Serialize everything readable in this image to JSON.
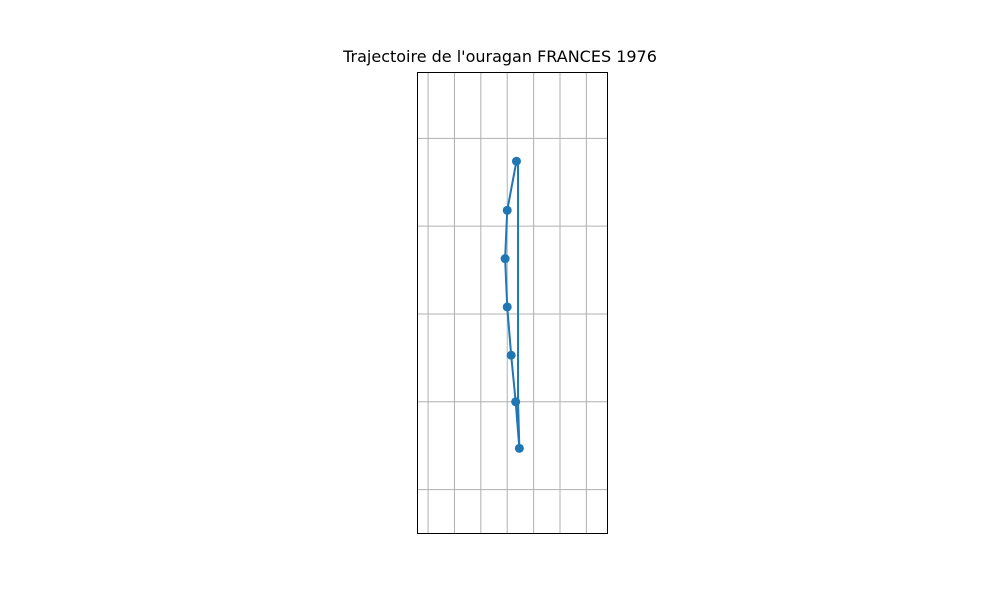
{
  "chart_data": {
    "type": "line",
    "title": "Trajectoire de l'ouragan FRANCES 1976",
    "xlabel": "",
    "ylabel": "",
    "grid": true,
    "x_gridlines": [
      0,
      1,
      2,
      3,
      4,
      5,
      6
    ],
    "y_gridlines": [
      0,
      1,
      2,
      3,
      4
    ],
    "xlim": [
      -0.4,
      6.8
    ],
    "ylim": [
      -0.5,
      4.75
    ],
    "series": [
      {
        "name": "",
        "color": "#1f77b4",
        "marker": "circle",
        "points": [
          {
            "x": 3.35,
            "y": 3.74
          },
          {
            "x": 3.0,
            "y": 3.18
          },
          {
            "x": 2.92,
            "y": 2.63
          },
          {
            "x": 3.0,
            "y": 2.08
          },
          {
            "x": 3.15,
            "y": 1.53
          },
          {
            "x": 3.32,
            "y": 1.0
          },
          {
            "x": 3.46,
            "y": 0.47
          }
        ],
        "path": [
          {
            "x": 3.46,
            "y": 0.47
          },
          {
            "x": 3.41,
            "y": 1.0
          },
          {
            "x": 3.41,
            "y": 3.74
          }
        ]
      }
    ]
  }
}
